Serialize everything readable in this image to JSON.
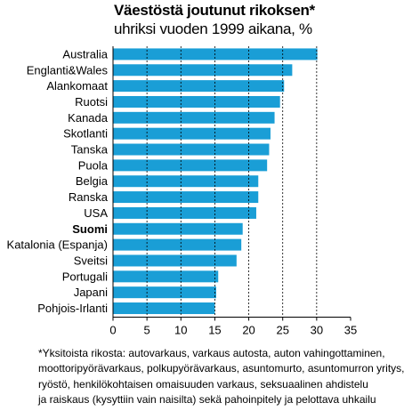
{
  "title_line1": "Väestöstä joutunut rikoksen*",
  "title_line2": "uhriksi vuoden 1999 aikana, %",
  "footnote": [
    "*Yksitoista rikosta: autovarkaus, varkaus autosta, auton vahingottaminen,",
    "moottoripyörävarkaus, polkupyörävarkaus, asuntomurto, asuntomurron yritys,",
    "ryöstö, henkilökohtaisen omaisuuden varkaus, seksuaalinen ahdistelu",
    "ja raiskaus (kysyttiin vain naisilta) sekä pahoinpitely ja pelottava uhkailu"
  ],
  "chart_data": {
    "type": "bar",
    "orientation": "horizontal",
    "categories": [
      "Australia",
      "Englanti&Wales",
      "Alankomaat",
      "Ruotsi",
      "Kanada",
      "Skotlanti",
      "Tanska",
      "Puola",
      "Belgia",
      "Ranska",
      "USA",
      "Suomi",
      "Katalonia (Espanja)",
      "Sveitsi",
      "Portugali",
      "Japani",
      "Pohjois-Irlanti"
    ],
    "values": [
      30.1,
      26.4,
      25.2,
      24.6,
      23.8,
      23.2,
      23.0,
      22.7,
      21.4,
      21.4,
      21.1,
      19.1,
      18.9,
      18.2,
      15.5,
      15.2,
      15.0
    ],
    "highlight_category": "Suomi",
    "xlim": [
      0,
      35
    ],
    "xticks": [
      0,
      5,
      10,
      15,
      20,
      25,
      30,
      35
    ],
    "grid": "vertical dashed",
    "bar_color": "#1a9ed6"
  }
}
